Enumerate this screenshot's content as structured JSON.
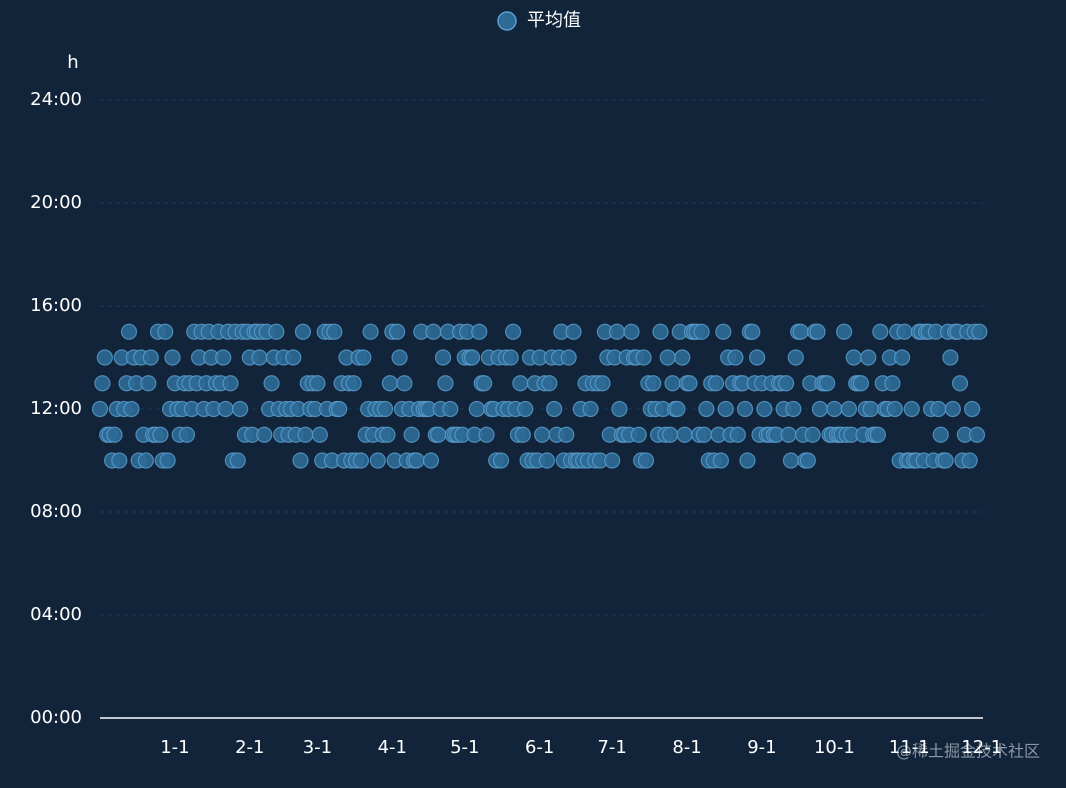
{
  "chart_data": {
    "type": "scatter",
    "legend_position": "top",
    "y_axis_name": "h",
    "watermark": "@稀土掘金技术社区",
    "grid": true,
    "xlim": [
      0,
      365.5
    ],
    "xticks": [
      {
        "value": 31,
        "label": "1-1"
      },
      {
        "value": 62,
        "label": "2-1"
      },
      {
        "value": 90,
        "label": "3-1"
      },
      {
        "value": 121,
        "label": "4-1"
      },
      {
        "value": 151,
        "label": "5-1"
      },
      {
        "value": 182,
        "label": "6-1"
      },
      {
        "value": 212,
        "label": "7-1"
      },
      {
        "value": 243,
        "label": "8-1"
      },
      {
        "value": 274,
        "label": "9-1"
      },
      {
        "value": 304,
        "label": "10-1"
      },
      {
        "value": 335,
        "label": "11-1"
      },
      {
        "value": 365,
        "label": "12-1"
      }
    ],
    "ylim": [
      0,
      24
    ],
    "yticks": [
      {
        "value": 0,
        "label": "00:00"
      },
      {
        "value": 4,
        "label": "04:00"
      },
      {
        "value": 8,
        "label": "08:00"
      },
      {
        "value": 12,
        "label": "12:00"
      },
      {
        "value": 16,
        "label": "16:00"
      },
      {
        "value": 20,
        "label": "20:00"
      },
      {
        "value": 24,
        "label": "24:00"
      }
    ],
    "x": [
      0,
      1,
      2,
      3,
      4,
      5,
      6,
      7,
      8,
      9,
      10,
      11,
      12,
      13,
      14,
      15,
      16,
      17,
      18,
      19,
      20,
      21,
      22,
      23,
      24,
      25,
      26,
      27,
      28,
      29,
      30,
      31,
      32,
      33,
      34,
      35,
      36,
      37,
      38,
      39,
      40,
      41,
      42,
      43,
      44,
      45,
      46,
      47,
      48,
      49,
      50,
      51,
      52,
      53,
      54,
      55,
      56,
      57,
      58,
      59,
      60,
      61,
      62,
      63,
      64,
      65,
      66,
      67,
      68,
      69,
      70,
      71,
      72,
      73,
      74,
      75,
      76,
      77,
      78,
      79,
      80,
      81,
      82,
      83,
      84,
      85,
      86,
      87,
      88,
      89,
      90,
      91,
      92,
      93,
      94,
      95,
      96,
      97,
      98,
      99,
      100,
      101,
      102,
      103,
      104,
      105,
      106,
      107,
      108,
      109,
      110,
      111,
      112,
      113,
      114,
      115,
      116,
      117,
      118,
      119,
      120,
      121,
      122,
      123,
      124,
      125,
      126,
      127,
      128,
      129,
      130,
      131,
      132,
      133,
      134,
      135,
      136,
      137,
      138,
      139,
      140,
      141,
      142,
      143,
      144,
      145,
      146,
      147,
      148,
      149,
      150,
      151,
      152,
      153,
      154,
      155,
      156,
      157,
      158,
      159,
      160,
      161,
      162,
      163,
      164,
      165,
      166,
      167,
      168,
      169,
      170,
      171,
      172,
      173,
      174,
      175,
      176,
      177,
      178,
      179,
      180,
      181,
      182,
      183,
      184,
      185,
      186,
      187,
      188,
      189,
      190,
      191,
      192,
      193,
      194,
      195,
      196,
      197,
      198,
      199,
      200,
      201,
      202,
      203,
      204,
      205,
      206,
      207,
      208,
      209,
      210,
      211,
      212,
      213,
      214,
      215,
      216,
      217,
      218,
      219,
      220,
      221,
      222,
      223,
      224,
      225,
      226,
      227,
      228,
      229,
      230,
      231,
      232,
      233,
      234,
      235,
      236,
      237,
      238,
      239,
      240,
      241,
      242,
      243,
      244,
      245,
      246,
      247,
      248,
      249,
      250,
      251,
      252,
      253,
      254,
      255,
      256,
      257,
      258,
      259,
      260,
      261,
      262,
      263,
      264,
      265,
      266,
      267,
      268,
      269,
      270,
      271,
      272,
      273,
      274,
      275,
      276,
      277,
      278,
      279,
      280,
      281,
      282,
      283,
      284,
      285,
      286,
      287,
      288,
      289,
      290,
      291,
      292,
      293,
      294,
      295,
      296,
      297,
      298,
      299,
      300,
      301,
      302,
      303,
      304,
      305,
      306,
      307,
      308,
      309,
      310,
      311,
      312,
      313,
      314,
      315,
      316,
      317,
      318,
      319,
      320,
      321,
      322,
      323,
      324,
      325,
      326,
      327,
      328,
      329,
      330,
      331,
      332,
      333,
      334,
      335,
      336,
      337,
      338,
      339,
      340,
      341,
      342,
      343,
      344,
      345,
      346,
      347,
      348,
      349,
      350,
      351,
      352,
      353,
      354,
      355,
      356,
      357,
      358,
      359,
      360,
      361,
      362,
      363,
      364
    ],
    "series": [
      {
        "name": "平均值",
        "color": "#2e6a96",
        "values": [
          12,
          13,
          14,
          11,
          11,
          10,
          11,
          12,
          10,
          14,
          12,
          13,
          15,
          12,
          14,
          13,
          10,
          14,
          11,
          10,
          13,
          14,
          11,
          11,
          15,
          11,
          10,
          15,
          10,
          12,
          14,
          13,
          12,
          11,
          12,
          13,
          11,
          13,
          12,
          15,
          13,
          14,
          15,
          12,
          13,
          15,
          14,
          12,
          13,
          15,
          13,
          14,
          12,
          15,
          13,
          10,
          15,
          10,
          12,
          15,
          11,
          15,
          14,
          11,
          15,
          15,
          14,
          15,
          11,
          15,
          12,
          13,
          14,
          15,
          12,
          11,
          14,
          12,
          11,
          12,
          14,
          11,
          12,
          10,
          15,
          11,
          13,
          12,
          13,
          12,
          13,
          11,
          10,
          15,
          12,
          15,
          10,
          15,
          12,
          12,
          13,
          10,
          14,
          13,
          10,
          13,
          10,
          14,
          10,
          14,
          11,
          12,
          15,
          11,
          12,
          10,
          12,
          11,
          12,
          11,
          13,
          15,
          10,
          15,
          14,
          12,
          13,
          10,
          12,
          11,
          10,
          10,
          12,
          15,
          12,
          12,
          12,
          10,
          15,
          11,
          11,
          12,
          14,
          13,
          15,
          12,
          11,
          11,
          11,
          15,
          11,
          14,
          15,
          14,
          14,
          11,
          12,
          15,
          13,
          13,
          11,
          14,
          12,
          12,
          10,
          14,
          10,
          12,
          14,
          12,
          14,
          15,
          12,
          11,
          13,
          11,
          12,
          10,
          14,
          10,
          13,
          10,
          14,
          11,
          13,
          10,
          13,
          14,
          12,
          11,
          14,
          15,
          10,
          11,
          14,
          10,
          15,
          10,
          10,
          12,
          10,
          13,
          10,
          12,
          13,
          10,
          13,
          10,
          13,
          15,
          14,
          11,
          10,
          14,
          15,
          12,
          11,
          11,
          14,
          11,
          15,
          14,
          14,
          11,
          10,
          14,
          10,
          13,
          12,
          13,
          12,
          11,
          15,
          12,
          11,
          14,
          11,
          13,
          12,
          12,
          15,
          14,
          11,
          13,
          13,
          15,
          15,
          15,
          11,
          15,
          11,
          12,
          10,
          13,
          10,
          13,
          11,
          10,
          15,
          12,
          14,
          11,
          13,
          14,
          11,
          13,
          13,
          12,
          10,
          15,
          15,
          13,
          14,
          11,
          13,
          12,
          11,
          11,
          13,
          11,
          11,
          13,
          13,
          12,
          13,
          11,
          10,
          12,
          14,
          15,
          15,
          11,
          10,
          10,
          13,
          11,
          15,
          15,
          12,
          13,
          13,
          13,
          11,
          11,
          12,
          11,
          11,
          11,
          15,
          11,
          12,
          11,
          14,
          13,
          13,
          13,
          11,
          12,
          14,
          12,
          11,
          11,
          11,
          15,
          13,
          12,
          12,
          14,
          13,
          12,
          15,
          10,
          14,
          15,
          10,
          10,
          12,
          10,
          10,
          15,
          15,
          10,
          15,
          15,
          12,
          10,
          15,
          12,
          11,
          10,
          10,
          15,
          14,
          12,
          15,
          15,
          13,
          10,
          11,
          15,
          10,
          12,
          15,
          11,
          15
        ]
      }
    ]
  }
}
